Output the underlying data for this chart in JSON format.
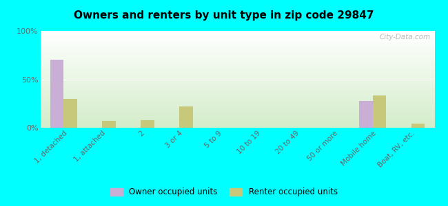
{
  "title": "Owners and renters by unit type in zip code 29847",
  "categories": [
    "1, detached",
    "1, attached",
    "2",
    "3 or 4",
    "5 to 9",
    "10 to 19",
    "20 to 49",
    "50 or more",
    "Mobile home",
    "Boat, RV, etc."
  ],
  "owner_values": [
    70,
    0,
    0,
    0,
    0,
    0,
    0,
    0,
    28,
    0
  ],
  "renter_values": [
    30,
    7,
    8,
    22,
    0,
    0,
    0,
    0,
    33,
    4
  ],
  "owner_color": "#c9aed6",
  "renter_color": "#c8c87a",
  "background_color": "#00ffff",
  "ylim": [
    0,
    100
  ],
  "yticks": [
    0,
    50,
    100
  ],
  "ytick_labels": [
    "0%",
    "50%",
    "100%"
  ],
  "bar_width": 0.35,
  "legend_owner": "Owner occupied units",
  "legend_renter": "Renter occupied units",
  "watermark": "City-Data.com"
}
